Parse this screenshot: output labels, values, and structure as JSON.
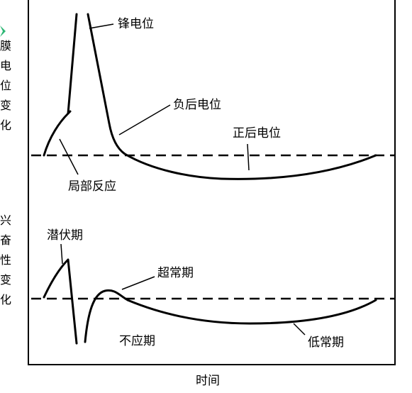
{
  "upper_panel": {
    "side_label": [
      "膜",
      "电",
      "位",
      "变",
      "化"
    ],
    "labels": {
      "spike": "锋电位",
      "negative_after": "负后电位",
      "positive_after": "正后电位",
      "local_response": "局部反应"
    }
  },
  "lower_panel": {
    "side_label": [
      "兴",
      "奋",
      "性",
      "变",
      "化"
    ],
    "labels": {
      "latent": "潜伏期",
      "supernormal": "超常期",
      "refractory": "不应期",
      "subnormal": "低常期"
    }
  },
  "x_axis_label": "时间",
  "colors": {
    "corner_mark": "#2bb673"
  }
}
